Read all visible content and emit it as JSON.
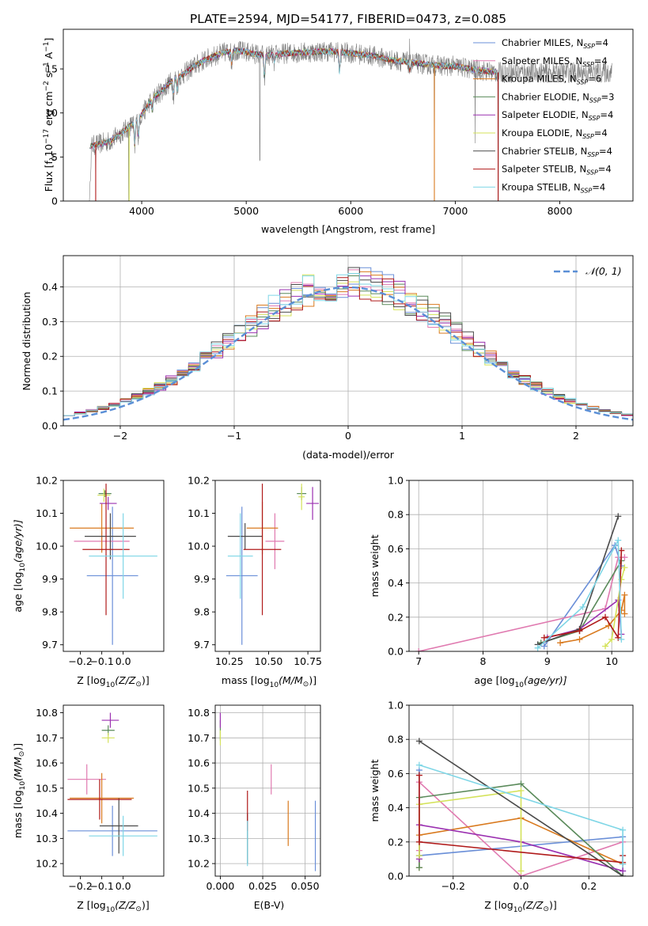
{
  "figure_title": "PLATE=2594, MJD=54177, FIBERID=0473, z=0.085",
  "colors": {
    "Chabrier MILES": "#6a8fd8",
    "Salpeter MILES": "#e07ab0",
    "Kroupa MILES": "#d97a1f",
    "Chabrier ELODIE": "#5a8a5a",
    "Salpeter ELODIE": "#9b30b0",
    "Kroupa ELODIE": "#d4e25a",
    "Chabrier STELIB": "#4a4a4a",
    "Salpeter STELIB": "#b01a1a",
    "Kroupa STELIB": "#7fd6e6",
    "data": "#808080",
    "normal": "#5b8fd6"
  },
  "chart_data": [
    {
      "id": "spectrum",
      "type": "line",
      "title": "PLATE=2594, MJD=54177, FIBERID=0473, z=0.085",
      "xlabel": "wavelength [Angstrom, rest frame]",
      "ylabel_main": "Flux [f",
      "ylabel_parts": [
        "λ",
        "10",
        "−17",
        " erg cm",
        "−2",
        " s",
        "−1",
        " A",
        "−1",
        "]"
      ],
      "xlim": [
        3250,
        8700
      ],
      "ylim": [
        0,
        19.5
      ],
      "xticks": [
        4000,
        5000,
        6000,
        7000,
        8000
      ],
      "yticks": [
        0,
        5,
        10,
        15
      ],
      "grid": false,
      "legend_position": "right",
      "continuum": [
        [
          3500,
          6.2
        ],
        [
          3700,
          6.8
        ],
        [
          3900,
          8.6
        ],
        [
          4000,
          9.8
        ],
        [
          4100,
          11.6
        ],
        [
          4200,
          12.6
        ],
        [
          4300,
          13.8
        ],
        [
          4400,
          14.4
        ],
        [
          4500,
          15.3
        ],
        [
          4600,
          16.0
        ],
        [
          4700,
          16.5
        ],
        [
          4800,
          16.9
        ],
        [
          4900,
          17.1
        ],
        [
          5000,
          16.9
        ],
        [
          5100,
          16.7
        ],
        [
          5200,
          16.5
        ],
        [
          5400,
          16.8
        ],
        [
          5600,
          16.9
        ],
        [
          5800,
          17.0
        ],
        [
          6000,
          16.8
        ],
        [
          6200,
          16.5
        ],
        [
          6400,
          16.0
        ],
        [
          6600,
          15.7
        ],
        [
          6800,
          15.4
        ],
        [
          7000,
          15.3
        ],
        [
          7200,
          14.9
        ],
        [
          7400,
          14.6
        ]
      ],
      "data_range": [
        3500,
        8500
      ],
      "model_range": [
        3500,
        7400
      ],
      "absorption_lines": [
        [
          3934,
          -3
        ],
        [
          3968,
          -2.5
        ],
        [
          4102,
          -1.5
        ],
        [
          4304,
          -2
        ],
        [
          4340,
          -1.5
        ],
        [
          4861,
          -1.5
        ],
        [
          5175,
          -3
        ],
        [
          5270,
          -1
        ],
        [
          5893,
          -2.5
        ],
        [
          6563,
          -1
        ]
      ],
      "spikes": [
        [
          3560,
          -6
        ],
        [
          3875,
          -9
        ],
        [
          5130,
          -13
        ],
        [
          6563,
          4
        ],
        [
          6800,
          -14
        ],
        [
          7190,
          -8
        ],
        [
          7410,
          -15
        ]
      ],
      "series": [
        {
          "name": "Chabrier MILES",
          "ssp": "4"
        },
        {
          "name": "Salpeter MILES",
          "ssp": "4"
        },
        {
          "name": "Kroupa MILES",
          "ssp": "6"
        },
        {
          "name": "Chabrier ELODIE",
          "ssp": "3"
        },
        {
          "name": "Salpeter ELODIE",
          "ssp": "4"
        },
        {
          "name": "Kroupa ELODIE",
          "ssp": "4"
        },
        {
          "name": "Chabrier STELIB",
          "ssp": "4"
        },
        {
          "name": "Salpeter STELIB",
          "ssp": "4"
        },
        {
          "name": "Kroupa STELIB",
          "ssp": "4"
        }
      ],
      "legend_suffix_main": "N",
      "legend_suffix_sub": "SSP"
    },
    {
      "id": "residuals",
      "type": "line",
      "xlabel": "(data-model)/error",
      "ylabel": "Normed distribution",
      "xlim": [
        -2.5,
        2.5
      ],
      "ylim": [
        0,
        0.49
      ],
      "xticks": [
        -2,
        -1,
        0,
        1,
        2
      ],
      "xticklabels": [
        "−2",
        "−1",
        "0",
        "1",
        "2"
      ],
      "yticks": [
        0.0,
        0.1,
        0.2,
        0.3,
        0.4
      ],
      "yticklabels": [
        "0.0",
        "0.1",
        "0.2",
        "0.3",
        "0.4"
      ],
      "grid": true,
      "bin_width": 0.1,
      "legend": "𝒩(0, 1)",
      "legend_position": "upper right"
    },
    {
      "id": "z_age",
      "type": "scatter",
      "xlabel": "Z [log",
      "xlabel_parts": [
        "10",
        "(Z/Z",
        "⊙",
        ")]"
      ],
      "ylabel": "age  [log",
      "ylabel_parts": [
        "10",
        "(age/yr)]"
      ],
      "xlim": [
        -0.28,
        0.19
      ],
      "ylim": [
        9.68,
        10.2
      ],
      "xticks": [
        -0.2,
        -0.1,
        0.0
      ],
      "xticklabels": [
        "−0.2",
        "−0.1",
        "0.0"
      ],
      "yticks": [
        9.7,
        9.8,
        9.9,
        10.0,
        10.1,
        10.2
      ],
      "yticklabels": [
        "9.7",
        "9.8",
        "9.9",
        "10.0",
        "10.1",
        "10.2"
      ],
      "grid": false,
      "points": [
        {
          "name": "Chabrier MILES",
          "x": -0.05,
          "y": 9.91,
          "xerr": 0.12,
          "yerr": 0.21
        },
        {
          "name": "Salpeter MILES",
          "x": -0.1,
          "y": 10.015,
          "xerr": 0.13,
          "yerr": 0.03
        },
        {
          "name": "Kroupa MILES",
          "x": -0.1,
          "y": 10.055,
          "xerr": 0.15,
          "yerr": 0.075
        },
        {
          "name": "Chabrier ELODIE",
          "x": -0.085,
          "y": 10.16,
          "xerr": 0.03,
          "yerr": 0.01
        },
        {
          "name": "Salpeter ELODIE",
          "x": -0.07,
          "y": 10.13,
          "xerr": 0.04,
          "yerr": 0.02
        },
        {
          "name": "Kroupa ELODIE",
          "x": -0.09,
          "y": 10.155,
          "xerr": 0.03,
          "yerr": 0.02
        },
        {
          "name": "Chabrier STELIB",
          "x": -0.06,
          "y": 10.03,
          "xerr": 0.12,
          "yerr": 0.07
        },
        {
          "name": "Salpeter STELIB",
          "x": -0.08,
          "y": 9.99,
          "xerr": 0.11,
          "yerr": 0.2
        },
        {
          "name": "Kroupa STELIB",
          "x": 0.0,
          "y": 9.97,
          "xerr": 0.16,
          "yerr": 0.13
        }
      ]
    },
    {
      "id": "mass_age",
      "type": "scatter",
      "xlabel": "mass [log",
      "xlabel_parts": [
        "10",
        "(M/M",
        "⊙",
        ")]"
      ],
      "xlim": [
        10.16,
        10.83
      ],
      "ylim": [
        9.68,
        10.2
      ],
      "xticks": [
        10.25,
        10.5,
        10.75
      ],
      "xticklabels": [
        "10.25",
        "10.50",
        "10.75"
      ],
      "yticks": [
        9.7,
        9.8,
        9.9,
        10.0,
        10.1,
        10.2
      ],
      "yticklabels": [
        "9.7",
        "9.8",
        "9.9",
        "10.0",
        "10.1",
        "10.2"
      ],
      "grid": false,
      "points": [
        {
          "name": "Chabrier MILES",
          "x": 10.33,
          "y": 9.91,
          "xerr": 0.1,
          "yerr": 0.21
        },
        {
          "name": "Salpeter MILES",
          "x": 10.54,
          "y": 10.015,
          "xerr": 0.06,
          "yerr": 0.085
        },
        {
          "name": "Kroupa MILES",
          "x": 10.46,
          "y": 10.055,
          "xerr": 0.1,
          "yerr": 0.08
        },
        {
          "name": "Chabrier ELODIE",
          "x": 10.71,
          "y": 10.16,
          "xerr": 0.03,
          "yerr": 0.02
        },
        {
          "name": "Salpeter ELODIE",
          "x": 10.78,
          "y": 10.13,
          "xerr": 0.04,
          "yerr": 0.05
        },
        {
          "name": "Kroupa ELODIE",
          "x": 10.71,
          "y": 10.15,
          "xerr": 0.02,
          "yerr": 0.04
        },
        {
          "name": "Chabrier STELIB",
          "x": 10.35,
          "y": 10.03,
          "xerr": 0.11,
          "yerr": 0.04
        },
        {
          "name": "Salpeter STELIB",
          "x": 10.46,
          "y": 9.99,
          "xerr": 0.12,
          "yerr": 0.2
        },
        {
          "name": "Kroupa STELIB",
          "x": 10.32,
          "y": 9.97,
          "xerr": 0.08,
          "yerr": 0.13
        }
      ]
    },
    {
      "id": "age_weight",
      "type": "line",
      "xlabel": "age  [log",
      "xlabel_parts": [
        "10",
        "(age/yr)]"
      ],
      "ylabel": "mass weight",
      "xlim": [
        6.85,
        10.33
      ],
      "ylim": [
        0,
        1.0
      ],
      "xticks": [
        7,
        8,
        9,
        10
      ],
      "yticks": [
        0.0,
        0.2,
        0.4,
        0.6,
        0.8,
        1.0
      ],
      "yticklabels": [
        "0.0",
        "0.2",
        "0.4",
        "0.6",
        "0.8",
        "1.0"
      ],
      "grid": true,
      "series": [
        {
          "name": "Chabrier MILES",
          "x": [
            8.95,
            10.05,
            10.15
          ],
          "y": [
            0.03,
            0.62,
            0.5
          ]
        },
        {
          "name": "Salpeter MILES",
          "x": [
            7.0,
            9.9,
            10.1,
            10.2
          ],
          "y": [
            0.0,
            0.25,
            0.55,
            0.55
          ]
        },
        {
          "name": "Kroupa MILES",
          "x": [
            9.2,
            9.5,
            9.95,
            10.15,
            10.2,
            10.2
          ],
          "y": [
            0.05,
            0.07,
            0.15,
            0.24,
            0.33,
            0.22
          ]
        },
        {
          "name": "Chabrier ELODIE",
          "x": [
            8.9,
            9.5,
            10.15
          ],
          "y": [
            0.05,
            0.12,
            0.53
          ]
        },
        {
          "name": "Salpeter ELODIE",
          "x": [
            9.0,
            9.5,
            10.1,
            10.15
          ],
          "y": [
            0.08,
            0.13,
            0.3,
            0.1
          ]
        },
        {
          "name": "Kroupa ELODIE",
          "x": [
            9.9,
            10.0,
            10.15,
            10.2
          ],
          "y": [
            0.03,
            0.07,
            0.42,
            0.49
          ]
        },
        {
          "name": "Chabrier STELIB",
          "x": [
            8.85,
            9.5,
            10.1
          ],
          "y": [
            0.04,
            0.13,
            0.79
          ]
        },
        {
          "name": "Salpeter STELIB",
          "x": [
            8.95,
            9.5,
            9.9,
            10.1,
            10.15
          ],
          "y": [
            0.08,
            0.12,
            0.2,
            0.08,
            0.59
          ]
        },
        {
          "name": "Kroupa STELIB",
          "x": [
            8.85,
            9.55,
            10.1,
            10.15
          ],
          "y": [
            0.02,
            0.26,
            0.65,
            0.07
          ]
        }
      ]
    },
    {
      "id": "z_mass",
      "type": "scatter",
      "xlabel": "Z [log",
      "xlabel_parts": [
        "10",
        "(Z/Z",
        "⊙",
        ")]"
      ],
      "ylabel": "mass [log",
      "ylabel_parts": [
        "10",
        "(M/M",
        "⊙",
        ")]"
      ],
      "xlim": [
        -0.28,
        0.19
      ],
      "ylim": [
        10.15,
        10.83
      ],
      "xticks": [
        -0.2,
        -0.1,
        0.0
      ],
      "xticklabels": [
        "−0.2",
        "−0.1",
        "0.0"
      ],
      "yticks": [
        10.2,
        10.3,
        10.4,
        10.5,
        10.6,
        10.7,
        10.8
      ],
      "yticklabels": [
        "10.2",
        "10.3",
        "10.4",
        "10.5",
        "10.6",
        "10.7",
        "10.8"
      ],
      "grid": false,
      "points": [
        {
          "name": "Chabrier MILES",
          "x": -0.05,
          "y": 10.33,
          "xerr": 0.21,
          "yerr": 0.1
        },
        {
          "name": "Salpeter MILES",
          "x": -0.17,
          "y": 10.535,
          "xerr": 0.09,
          "yerr": 0.06
        },
        {
          "name": "Kroupa MILES",
          "x": -0.1,
          "y": 10.46,
          "xerr": 0.15,
          "yerr": 0.1
        },
        {
          "name": "Chabrier ELODIE",
          "x": -0.07,
          "y": 10.73,
          "xerr": 0.03,
          "yerr": 0.02
        },
        {
          "name": "Salpeter ELODIE",
          "x": -0.06,
          "y": 10.77,
          "xerr": 0.04,
          "yerr": 0.03
        },
        {
          "name": "Kroupa ELODIE",
          "x": -0.07,
          "y": 10.7,
          "xerr": 0.03,
          "yerr": 0.02
        },
        {
          "name": "Chabrier STELIB",
          "x": -0.02,
          "y": 10.35,
          "xerr": 0.09,
          "yerr": 0.11
        },
        {
          "name": "Salpeter STELIB",
          "x": -0.11,
          "y": 10.455,
          "xerr": 0.15,
          "yerr": 0.08
        },
        {
          "name": "Kroupa STELIB",
          "x": 0.0,
          "y": 10.31,
          "xerr": 0.16,
          "yerr": 0.08
        }
      ]
    },
    {
      "id": "ebv_mass",
      "type": "scatter",
      "xlabel": "E(B-V)",
      "xlim": [
        -0.003,
        0.059
      ],
      "ylim": [
        10.15,
        10.83
      ],
      "xticks": [
        0.0,
        0.025,
        0.05
      ],
      "xticklabels": [
        "0.000",
        "0.025",
        "0.050"
      ],
      "yticks": [
        10.2,
        10.3,
        10.4,
        10.5,
        10.6,
        10.7,
        10.8
      ],
      "yticklabels": [
        "10.2",
        "10.3",
        "10.4",
        "10.5",
        "10.6",
        "10.7",
        "10.8"
      ],
      "grid": true,
      "points": [
        {
          "name": "Chabrier MILES",
          "x": 0.056,
          "y": 10.31,
          "xerr": 0,
          "yerr": 0.14
        },
        {
          "name": "Salpeter MILES",
          "x": 0.03,
          "y": 10.535,
          "xerr": 0,
          "yerr": 0.06
        },
        {
          "name": "Kroupa MILES",
          "x": 0.04,
          "y": 10.36,
          "xerr": 0,
          "yerr": 0.09
        },
        {
          "name": "Chabrier ELODIE",
          "x": 0.0,
          "y": 10.73,
          "xerr": 0,
          "yerr": 0.04
        },
        {
          "name": "Salpeter ELODIE",
          "x": 0.0,
          "y": 10.77,
          "xerr": 0,
          "yerr": 0.03
        },
        {
          "name": "Kroupa ELODIE",
          "x": 0.0,
          "y": 10.7,
          "xerr": 0,
          "yerr": 0.03
        },
        {
          "name": "Chabrier STELIB",
          "x": 0.016,
          "y": 10.3,
          "xerr": 0,
          "yerr": 0.1
        },
        {
          "name": "Salpeter STELIB",
          "x": 0.016,
          "y": 10.41,
          "xerr": 0,
          "yerr": 0.08
        },
        {
          "name": "Kroupa STELIB",
          "x": 0.016,
          "y": 10.28,
          "xerr": 0,
          "yerr": 0.09
        }
      ]
    },
    {
      "id": "z_weight",
      "type": "line",
      "xlabel": "Z [log",
      "xlabel_parts": [
        "10",
        "(Z/Z",
        "⊙",
        ")]"
      ],
      "ylabel": "mass weight",
      "xlim": [
        -0.33,
        0.33
      ],
      "ylim": [
        0,
        1.0
      ],
      "xticks": [
        -0.2,
        0.0,
        0.2
      ],
      "xticklabels": [
        "−0.2",
        "0.0",
        "0.2"
      ],
      "yticks": [
        0.0,
        0.2,
        0.4,
        0.6,
        0.8,
        1.0
      ],
      "yticklabels": [
        "0.0",
        "0.2",
        "0.4",
        "0.6",
        "0.8",
        "1.0"
      ],
      "grid": true,
      "series": [
        {
          "name": "Chabrier MILES",
          "x": [
            -0.3,
            -0.3,
            0.3,
            0.3
          ],
          "y": [
            0.62,
            0.12,
            0.23,
            0.03
          ]
        },
        {
          "name": "Salpeter MILES",
          "x": [
            -0.3,
            -0.3,
            0.0,
            0.3
          ],
          "y": [
            0.15,
            0.55,
            0.0,
            0.2
          ]
        },
        {
          "name": "Kroupa MILES",
          "x": [
            -0.3,
            -0.3,
            0.0,
            0.3
          ],
          "y": [
            0.05,
            0.24,
            0.34,
            0.07
          ]
        },
        {
          "name": "Chabrier ELODIE",
          "x": [
            -0.3,
            -0.3,
            0.0,
            0.3
          ],
          "y": [
            0.05,
            0.46,
            0.54,
            0.0
          ]
        },
        {
          "name": "Salpeter ELODIE",
          "x": [
            -0.3,
            -0.3,
            0.0,
            0.3
          ],
          "y": [
            0.1,
            0.3,
            0.2,
            0.03
          ]
        },
        {
          "name": "Kroupa ELODIE",
          "x": [
            -0.3,
            -0.3,
            0.0,
            0.0
          ],
          "y": [
            0.12,
            0.42,
            0.5,
            0.03
          ]
        },
        {
          "name": "Chabrier STELIB",
          "x": [
            -0.3,
            0.3
          ],
          "y": [
            0.79,
            0.0
          ]
        },
        {
          "name": "Salpeter STELIB",
          "x": [
            -0.3,
            -0.3,
            0.3,
            0.3
          ],
          "y": [
            0.59,
            0.2,
            0.08,
            0.12
          ]
        },
        {
          "name": "Kroupa STELIB",
          "x": [
            -0.3,
            0.3,
            0.3
          ],
          "y": [
            0.65,
            0.27,
            0.07
          ]
        }
      ]
    }
  ]
}
